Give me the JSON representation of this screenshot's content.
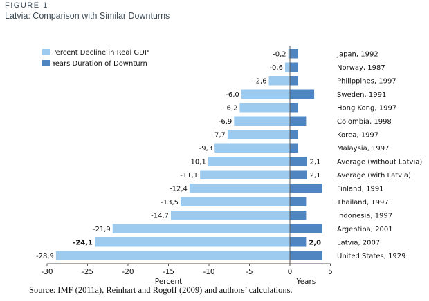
{
  "figure_label": "FIGURE 1",
  "figure_title": "Latvia: Comparison with Similar Downturns",
  "source_note": "Source: IMF (2011a), Reinhart and Rogoff (2009) and authors’ calculations.",
  "colors": {
    "gdp": "#9ccbef",
    "years": "#4f86c2"
  },
  "chart_data": {
    "type": "bar",
    "orientation": "horizontal",
    "categories": [
      "Japan, 1992",
      "Norway, 1987",
      "Philippines, 1997",
      "Sweden, 1991",
      "Hong Kong, 1997",
      "Colombia, 1998",
      "Korea, 1997",
      "Malaysia, 1997",
      "Average (without Latvia)",
      "Average (with Latvia)",
      "Finland, 1991",
      "Thailand, 1997",
      "Indonesia, 1997",
      "Argentina, 2001",
      "Latvia, 2007",
      "United States, 1929"
    ],
    "highlight_category": "Latvia, 2007",
    "series": [
      {
        "name": "Percent Decline in Real GDP",
        "values": [
          -0.2,
          -0.6,
          -2.6,
          -6.0,
          -6.2,
          -6.9,
          -7.7,
          -9.3,
          -10.1,
          -11.1,
          -12.4,
          -13.5,
          -14.7,
          -21.9,
          -24.1,
          -28.9
        ],
        "labels": [
          "-0,2",
          "-0,6",
          "-2,6",
          "-6,0",
          "-6,2",
          "-6,9",
          "-7,7",
          "-9,3",
          "-10,1",
          "-11,1",
          "-12,4",
          "-13,5",
          "-14,7",
          "-21,9",
          "-24,1",
          "-28,9"
        ]
      },
      {
        "name": "Years Duration of Downturn",
        "values": [
          1,
          1,
          1,
          3,
          1,
          2,
          1,
          1,
          2.1,
          2.1,
          4,
          2,
          2,
          4,
          2.0,
          4
        ],
        "labels": [
          "",
          "",
          "",
          "",
          "",
          "",
          "",
          "",
          "2,1",
          "2,1",
          "",
          "",
          "",
          "",
          "2,0",
          ""
        ]
      }
    ],
    "xlim": [
      -30,
      5
    ],
    "xticks": [
      -30,
      -25,
      -20,
      -15,
      -10,
      -5,
      0,
      5
    ],
    "xlabel_left": "Percent",
    "xlabel_right": "Years",
    "legend_position": "top-left"
  }
}
